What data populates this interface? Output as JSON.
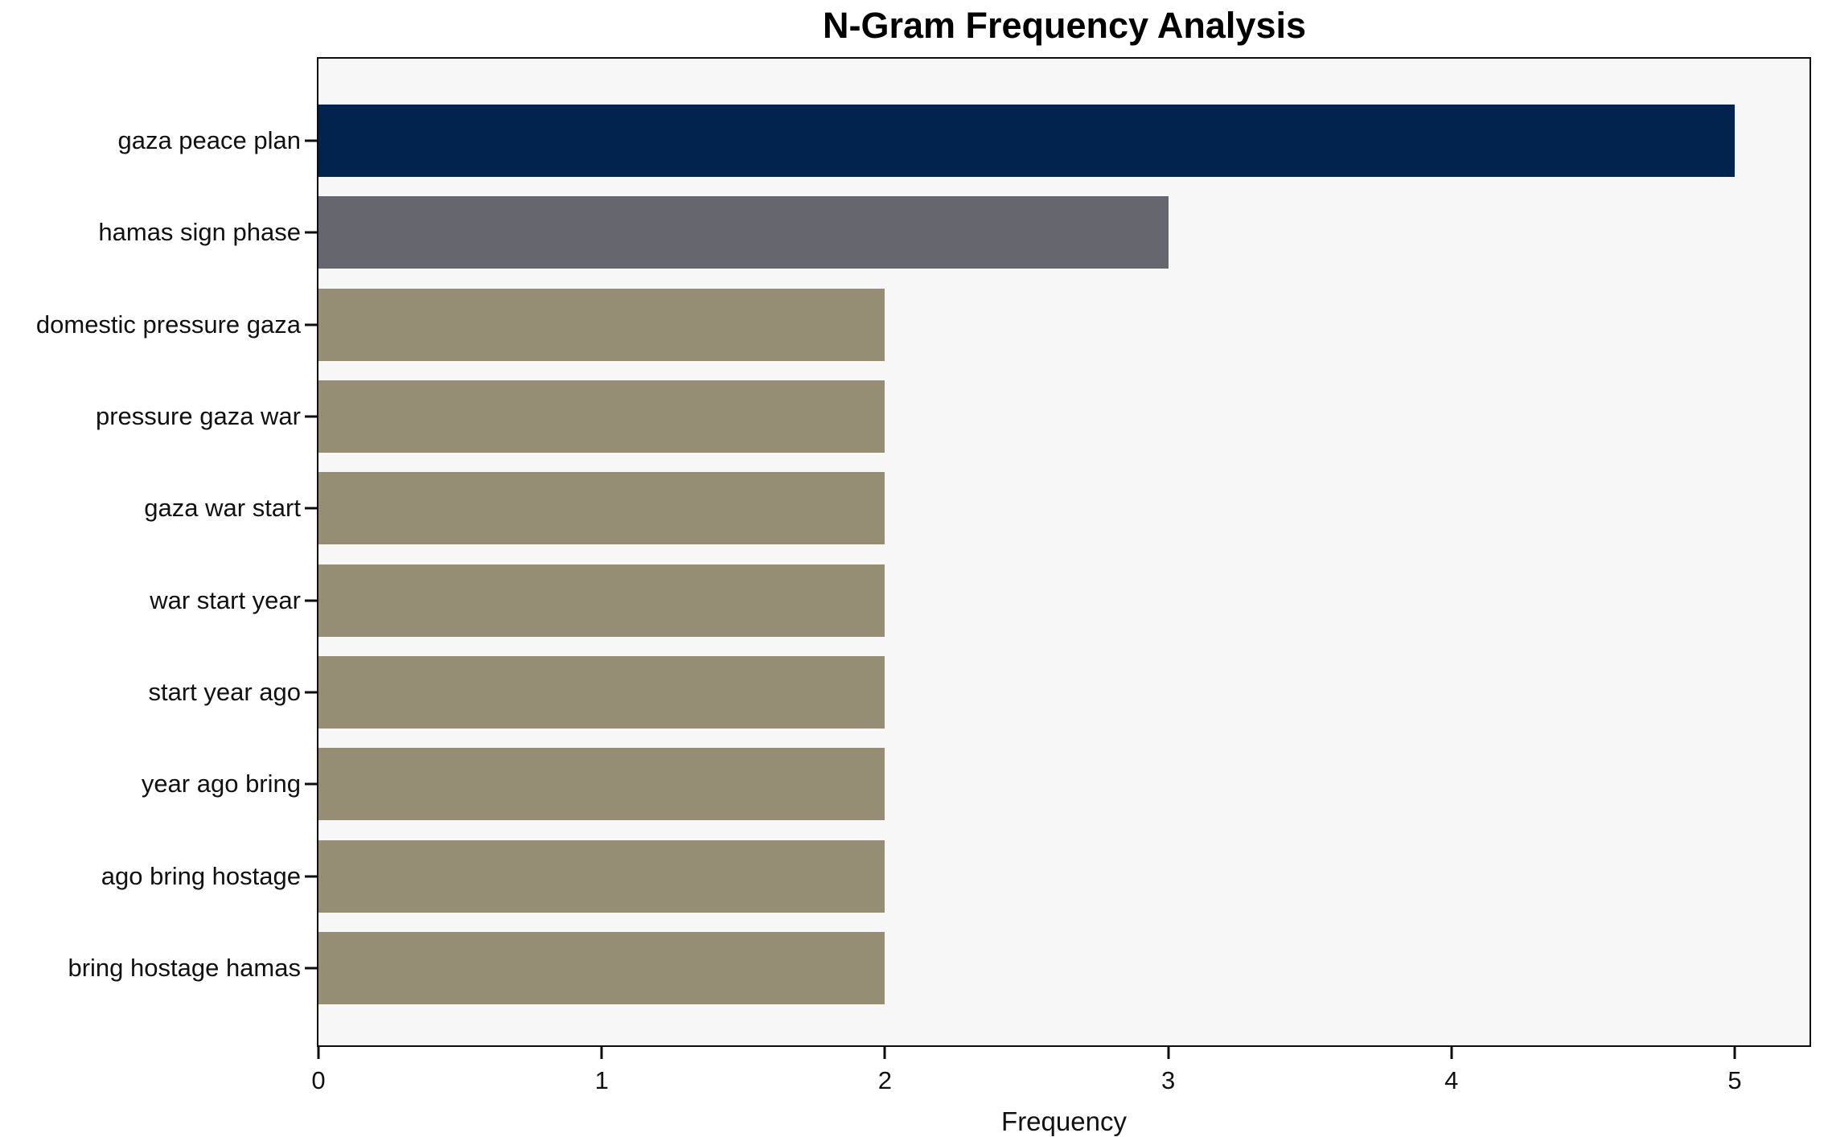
{
  "chart_data": {
    "type": "bar",
    "orientation": "horizontal",
    "title": "N-Gram Frequency Analysis",
    "xlabel": "Frequency",
    "ylabel": "",
    "categories": [
      "gaza peace plan",
      "hamas sign phase",
      "domestic pressure gaza",
      "pressure gaza war",
      "gaza war start",
      "war start year",
      "start year ago",
      "year ago bring",
      "ago bring hostage",
      "bring hostage hamas"
    ],
    "values": [
      5,
      3,
      2,
      2,
      2,
      2,
      2,
      2,
      2,
      2
    ],
    "bar_colors": [
      "#02234d",
      "#65666e",
      "#958d74",
      "#958d74",
      "#958d74",
      "#958d74",
      "#958d74",
      "#958d74",
      "#958d74",
      "#958d74"
    ],
    "xticks": [
      0,
      1,
      2,
      3,
      4,
      5
    ],
    "xlim": [
      0,
      5.25
    ],
    "grid": false,
    "legend": "none",
    "plot_background": "#f7f7f7",
    "figure_background": "#ffffff",
    "text_color": "#111111"
  }
}
